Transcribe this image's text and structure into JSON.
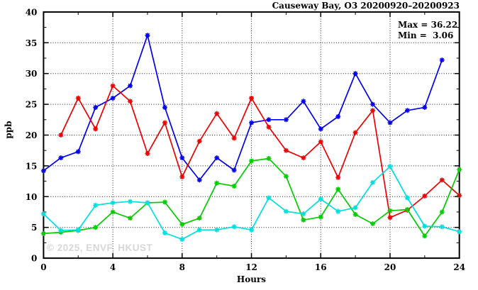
{
  "header": {
    "title": "Causeway Bay, O3 20200920–20200923"
  },
  "stats": {
    "max_label": "Max = 36.22",
    "min_label": "Min =  3.06",
    "max": 36.22,
    "min": 3.06
  },
  "watermark": "© 2025, ENVF, HKUST",
  "chart_data": {
    "type": "line",
    "title": "Causeway Bay, O3 20200920–20200923",
    "xlabel": "Hours",
    "ylabel": "ppb",
    "xlim": [
      0,
      24
    ],
    "ylim": [
      0,
      40
    ],
    "xticks_major": [
      0,
      4,
      8,
      12,
      16,
      20,
      24
    ],
    "xticks_minor": [
      2,
      6,
      10,
      14,
      18,
      22
    ],
    "yticks_major": [
      0,
      5,
      10,
      15,
      20,
      25,
      30,
      35,
      40
    ],
    "yticks_minor": [
      2.5,
      7.5,
      12.5,
      17.5,
      22.5,
      27.5,
      32.5,
      37.5
    ],
    "grid_x": [
      4,
      8,
      12,
      16,
      20
    ],
    "grid_y": [
      5,
      10,
      15,
      20,
      25,
      30,
      35
    ],
    "grid": true,
    "legend": null,
    "marker": "asterisk",
    "series": [
      {
        "name": "series-blue",
        "color": "#0000ee",
        "hours": [
          0,
          1,
          2,
          3,
          4,
          5,
          6,
          7,
          8,
          9,
          10,
          11,
          12,
          13,
          14,
          15,
          16,
          17,
          18,
          19,
          20,
          21,
          22,
          23
        ],
        "values": [
          14.2,
          16.3,
          17.3,
          24.5,
          26.0,
          28.0,
          36.22,
          24.5,
          16.3,
          12.7,
          16.3,
          14.3,
          22.0,
          22.5,
          22.5,
          25.5,
          21.0,
          23.0,
          30.0,
          25.0,
          22.0,
          24.0,
          24.5,
          32.2
        ]
      },
      {
        "name": "series-red",
        "color": "#ee0000",
        "hours": [
          1,
          2,
          3,
          4,
          5,
          6,
          7,
          8,
          9,
          10,
          11,
          12,
          13,
          14,
          15,
          16,
          17,
          18,
          19,
          20,
          21,
          22,
          23,
          24
        ],
        "values": [
          20.0,
          26.0,
          21.0,
          28.0,
          25.5,
          17.0,
          22.0,
          13.2,
          19.0,
          23.5,
          19.5,
          26.0,
          21.3,
          17.5,
          16.3,
          18.9,
          13.1,
          20.4,
          24.0,
          6.6,
          7.8,
          10.1,
          12.7,
          10.2
        ]
      },
      {
        "name": "series-green",
        "color": "#00cc00",
        "hours": [
          0,
          1,
          2,
          3,
          4,
          5,
          6,
          7,
          8,
          9,
          10,
          11,
          12,
          13,
          14,
          15,
          16,
          17,
          18,
          19,
          20,
          21,
          22,
          23,
          24
        ],
        "values": [
          4.0,
          4.2,
          4.5,
          5.0,
          7.5,
          6.5,
          9.0,
          9.1,
          5.5,
          6.5,
          12.2,
          11.7,
          15.8,
          16.2,
          13.3,
          6.2,
          6.7,
          11.2,
          7.1,
          5.6,
          7.7,
          7.9,
          3.6,
          7.5,
          14.4
        ]
      },
      {
        "name": "series-cyan",
        "color": "#00dede",
        "hours": [
          0,
          1,
          2,
          3,
          4,
          5,
          6,
          7,
          8,
          9,
          10,
          11,
          12,
          13,
          14,
          15,
          16,
          17,
          18,
          19,
          20,
          21,
          22,
          23,
          24
        ],
        "values": [
          7.2,
          4.5,
          4.6,
          8.6,
          9.0,
          9.2,
          9.0,
          4.1,
          3.06,
          4.6,
          4.6,
          5.1,
          4.6,
          9.8,
          7.6,
          7.2,
          9.6,
          7.6,
          8.2,
          12.3,
          14.9,
          9.8,
          5.2,
          5.1,
          4.3
        ]
      }
    ]
  }
}
